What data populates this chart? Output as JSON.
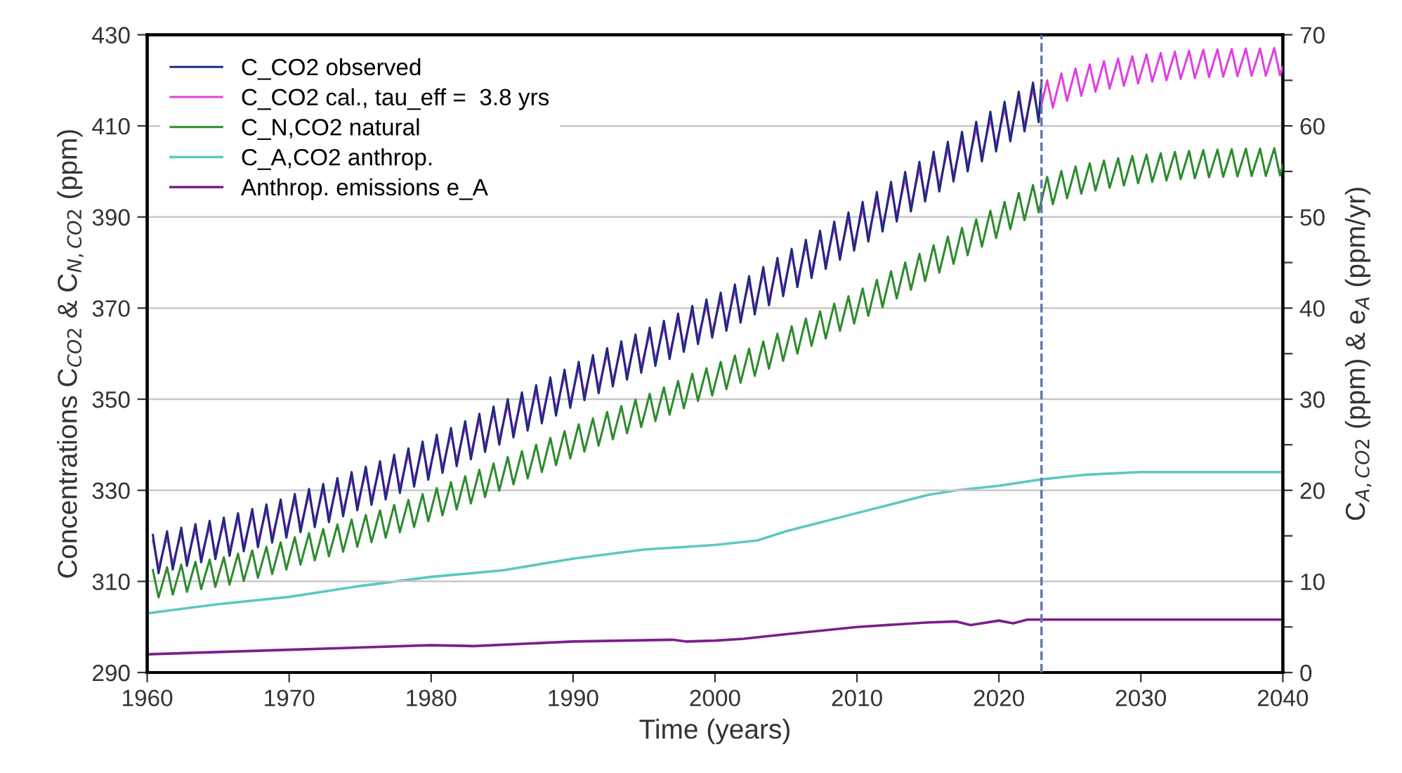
{
  "chart_data": {
    "type": "line",
    "xlabel": "Time (years)",
    "ylabel": "Concentrations C$_{CO2}$ & C$_{N,CO2}$ (ppm)",
    "y2label": "C$_{A,CO2}$ (ppm) & e$_{A}$ (ppm/yr)",
    "xlim": [
      1960,
      2040
    ],
    "xticks": [
      1960,
      1970,
      1980,
      1990,
      2000,
      2010,
      2020,
      2030,
      2040
    ],
    "ylim": [
      290,
      430
    ],
    "yticks": [
      290,
      310,
      330,
      350,
      370,
      390,
      410,
      430
    ],
    "y2lim": [
      0,
      70
    ],
    "y2ticks": [
      0,
      {
        "value": 5,
        "label": null
      },
      10,
      {
        "value": 15,
        "label": null
      },
      20,
      {
        "value": 25,
        "label": null
      },
      30,
      {
        "value": 35,
        "label": null
      },
      40,
      {
        "value": 45,
        "label": null
      },
      50,
      {
        "value": 55,
        "label": null
      },
      60,
      {
        "value": 65,
        "label": null
      },
      70
    ],
    "grid": "y",
    "legend": "top left",
    "line_style": "solid",
    "ref_lines": [
      {
        "axis": "x",
        "value": 2023,
        "label": null,
        "color": "#6070b0",
        "line_style": "dashed"
      }
    ],
    "series": [
      {
        "name": "C_CO2 observed",
        "color": "#1f2a80",
        "x": [
          1960.4,
          1960.8,
          1961.4,
          1961.8,
          1962.4,
          1962.8,
          1963.4,
          1963.8,
          1964.4,
          1964.8,
          1965.4,
          1965.8,
          1966.4,
          1966.8,
          1967.4,
          1967.8,
          1968.4,
          1968.8,
          1969.4,
          1969.8,
          1970.4,
          1970.8,
          1971.4,
          1971.8,
          1972.4,
          1972.8,
          1973.4,
          1973.8,
          1974.4,
          1974.8,
          1975.4,
          1975.8,
          1976.4,
          1976.8,
          1977.4,
          1977.8,
          1978.4,
          1978.8,
          1979.4,
          1979.8,
          1980.4,
          1980.8,
          1981.4,
          1981.8,
          1982.4,
          1982.8,
          1983.4,
          1983.8,
          1984.4,
          1984.8,
          1985.4,
          1985.8,
          1986.4,
          1986.8,
          1987.4,
          1987.8,
          1988.4,
          1988.8,
          1989.4,
          1989.8,
          1990.4,
          1990.8,
          1991.4,
          1991.8,
          1992.4,
          1992.8,
          1993.4,
          1993.8,
          1994.4,
          1994.8,
          1995.4,
          1995.8,
          1996.4,
          1996.8,
          1997.4,
          1997.8,
          1998.4,
          1998.8,
          1999.4,
          1999.8,
          2000.4,
          2000.8,
          2001.4,
          2001.8,
          2002.4,
          2002.8,
          2003.4,
          2003.8,
          2004.4,
          2004.8,
          2005.4,
          2005.8,
          2006.4,
          2006.8,
          2007.4,
          2007.8,
          2008.4,
          2008.8,
          2009.4,
          2009.8,
          2010.4,
          2010.8,
          2011.4,
          2011.8,
          2012.4,
          2012.8,
          2013.4,
          2013.8,
          2014.4,
          2014.8,
          2015.4,
          2015.8,
          2016.4,
          2016.8,
          2017.4,
          2017.8,
          2018.4,
          2018.8,
          2019.4,
          2019.8,
          2020.4,
          2020.8,
          2021.4,
          2021.8,
          2022.4,
          2022.8,
          2023.0
        ],
        "values": [
          320.2,
          311.8,
          321.0,
          312.6,
          321.8,
          313.4,
          322.6,
          314.2,
          323.3,
          314.9,
          324.0,
          315.6,
          325.0,
          316.6,
          325.9,
          317.5,
          326.9,
          318.5,
          328.0,
          319.6,
          329.2,
          320.8,
          330.3,
          321.9,
          331.4,
          323.0,
          332.7,
          324.3,
          334.0,
          325.6,
          335.2,
          326.8,
          336.4,
          328.0,
          337.8,
          329.4,
          339.2,
          330.8,
          340.7,
          332.3,
          342.2,
          333.8,
          343.7,
          335.3,
          345.2,
          336.8,
          346.8,
          338.4,
          348.4,
          340.0,
          350.0,
          341.6,
          351.5,
          343.1,
          353.1,
          344.7,
          354.8,
          346.4,
          356.5,
          348.1,
          358.2,
          349.8,
          359.7,
          351.3,
          361.2,
          352.8,
          362.7,
          354.3,
          364.2,
          355.8,
          365.7,
          357.3,
          367.2,
          358.8,
          368.8,
          360.4,
          370.5,
          362.1,
          371.9,
          363.5,
          373.4,
          365.0,
          375.2,
          366.8,
          377.0,
          368.6,
          379.0,
          370.6,
          381.0,
          372.6,
          383.0,
          374.6,
          385.0,
          376.6,
          387.0,
          378.6,
          389.0,
          380.6,
          391.0,
          382.6,
          393.3,
          384.6,
          395.5,
          386.8,
          397.7,
          389.0,
          399.9,
          391.2,
          402.1,
          393.4,
          404.3,
          395.6,
          406.5,
          397.8,
          408.7,
          400.0,
          410.9,
          402.2,
          413.1,
          404.4,
          415.3,
          406.6,
          417.5,
          408.8,
          419.5,
          410.8,
          420.0
        ]
      },
      {
        "name": "C_CO2 cal., tau_eff =  3.8 yrs",
        "color": "#e040e0",
        "x": [
          1960.4,
          1960.8,
          1961.4,
          1961.8,
          1962.4,
          1962.8,
          1963.4,
          1963.8,
          1964.4,
          1964.8,
          1965.4,
          1965.8,
          1966.4,
          1966.8,
          1967.4,
          1967.8,
          1968.4,
          1968.8,
          1969.4,
          1969.8,
          1970.4,
          1970.8,
          1971.4,
          1971.8,
          1972.4,
          1972.8,
          1973.4,
          1973.8,
          1974.4,
          1974.8,
          1975.4,
          1975.8,
          1976.4,
          1976.8,
          1977.4,
          1977.8,
          1978.4,
          1978.8,
          1979.4,
          1979.8,
          1980.4,
          1980.8,
          1981.4,
          1981.8,
          1982.4,
          1982.8,
          1983.4,
          1983.8,
          1984.4,
          1984.8,
          1985.4,
          1985.8,
          1986.4,
          1986.8,
          1987.4,
          1987.8,
          1988.4,
          1988.8,
          1989.4,
          1989.8,
          1990.4,
          1990.8,
          1991.4,
          1991.8,
          1992.4,
          1992.8,
          1993.4,
          1993.8,
          1994.4,
          1994.8,
          1995.4,
          1995.8,
          1996.4,
          1996.8,
          1997.4,
          1997.8,
          1998.4,
          1998.8,
          1999.4,
          1999.8,
          2000.4,
          2000.8,
          2001.4,
          2001.8,
          2002.4,
          2002.8,
          2003.4,
          2003.8,
          2004.4,
          2004.8,
          2005.4,
          2005.8,
          2006.4,
          2006.8,
          2007.4,
          2007.8,
          2008.4,
          2008.8,
          2009.4,
          2009.8,
          2010.4,
          2010.8,
          2011.4,
          2011.8,
          2012.4,
          2012.8,
          2013.4,
          2013.8,
          2014.4,
          2014.8,
          2015.4,
          2015.8,
          2016.4,
          2016.8,
          2017.4,
          2017.8,
          2018.4,
          2018.8,
          2019.4,
          2019.8,
          2020.4,
          2020.8,
          2021.4,
          2021.8,
          2022.4,
          2022.8,
          2023.4,
          2023.8,
          2024.4,
          2024.8,
          2025.4,
          2025.8,
          2026.4,
          2026.8,
          2027.4,
          2027.8,
          2028.4,
          2028.8,
          2029.4,
          2029.8,
          2030.4,
          2030.8,
          2031.4,
          2031.8,
          2032.4,
          2032.8,
          2033.4,
          2033.8,
          2034.4,
          2034.8,
          2035.4,
          2035.8,
          2036.4,
          2036.8,
          2037.4,
          2037.8,
          2038.4,
          2038.8,
          2039.4,
          2039.8,
          2040.0
        ],
        "values": [
          319.0,
          313.0,
          319.8,
          313.8,
          320.6,
          314.6,
          321.4,
          315.4,
          322.1,
          316.1,
          322.8,
          316.8,
          323.8,
          317.8,
          324.7,
          318.7,
          325.7,
          319.7,
          326.8,
          320.8,
          328.0,
          322.0,
          329.1,
          323.1,
          330.2,
          324.2,
          331.5,
          325.5,
          332.8,
          326.8,
          334.0,
          328.0,
          335.2,
          329.2,
          336.6,
          330.6,
          338.0,
          332.0,
          339.5,
          333.5,
          341.0,
          335.0,
          342.5,
          336.5,
          344.0,
          338.0,
          345.6,
          339.6,
          347.2,
          341.2,
          348.8,
          342.8,
          350.3,
          344.3,
          351.9,
          345.9,
          353.6,
          347.6,
          355.3,
          349.3,
          357.0,
          351.0,
          358.5,
          352.5,
          360.0,
          354.0,
          361.5,
          355.5,
          363.0,
          357.0,
          364.5,
          358.5,
          366.0,
          360.0,
          367.6,
          361.6,
          369.3,
          363.3,
          370.7,
          364.7,
          372.2,
          366.2,
          374.0,
          368.0,
          375.8,
          369.8,
          377.8,
          371.8,
          379.8,
          373.8,
          381.8,
          375.8,
          383.8,
          377.8,
          385.8,
          379.8,
          387.8,
          381.8,
          389.8,
          383.8,
          391.8,
          385.8,
          394.0,
          388.0,
          396.2,
          390.2,
          398.4,
          392.4,
          400.6,
          394.6,
          402.8,
          396.8,
          405.0,
          399.0,
          407.2,
          401.2,
          409.4,
          403.4,
          411.6,
          405.6,
          413.8,
          407.8,
          416.0,
          410.0,
          418.0,
          412.0,
          420.0,
          414.0,
          421.5,
          415.5,
          422.6,
          416.6,
          423.5,
          417.5,
          424.2,
          418.2,
          424.8,
          418.8,
          425.3,
          419.3,
          425.7,
          419.7,
          426.0,
          420.0,
          426.3,
          420.3,
          426.5,
          420.5,
          426.7,
          420.7,
          426.8,
          420.8,
          426.9,
          420.9,
          427.0,
          421.0,
          427.0,
          421.0,
          427.1,
          421.1,
          423.0
        ]
      },
      {
        "name": "C_N,CO2 natural",
        "color": "#2e8b2e",
        "x": [
          1960.4,
          1960.8,
          1961.4,
          1961.8,
          1962.4,
          1962.8,
          1963.4,
          1963.8,
          1964.4,
          1964.8,
          1965.4,
          1965.8,
          1966.4,
          1966.8,
          1967.4,
          1967.8,
          1968.4,
          1968.8,
          1969.4,
          1969.8,
          1970.4,
          1970.8,
          1971.4,
          1971.8,
          1972.4,
          1972.8,
          1973.4,
          1973.8,
          1974.4,
          1974.8,
          1975.4,
          1975.8,
          1976.4,
          1976.8,
          1977.4,
          1977.8,
          1978.4,
          1978.8,
          1979.4,
          1979.8,
          1980.4,
          1980.8,
          1981.4,
          1981.8,
          1982.4,
          1982.8,
          1983.4,
          1983.8,
          1984.4,
          1984.8,
          1985.4,
          1985.8,
          1986.4,
          1986.8,
          1987.4,
          1987.8,
          1988.4,
          1988.8,
          1989.4,
          1989.8,
          1990.4,
          1990.8,
          1991.4,
          1991.8,
          1992.4,
          1992.8,
          1993.4,
          1993.8,
          1994.4,
          1994.8,
          1995.4,
          1995.8,
          1996.4,
          1996.8,
          1997.4,
          1997.8,
          1998.4,
          1998.8,
          1999.4,
          1999.8,
          2000.4,
          2000.8,
          2001.4,
          2001.8,
          2002.4,
          2002.8,
          2003.4,
          2003.8,
          2004.4,
          2004.8,
          2005.4,
          2005.8,
          2006.4,
          2006.8,
          2007.4,
          2007.8,
          2008.4,
          2008.8,
          2009.4,
          2009.8,
          2010.4,
          2010.8,
          2011.4,
          2011.8,
          2012.4,
          2012.8,
          2013.4,
          2013.8,
          2014.4,
          2014.8,
          2015.4,
          2015.8,
          2016.4,
          2016.8,
          2017.4,
          2017.8,
          2018.4,
          2018.8,
          2019.4,
          2019.8,
          2020.4,
          2020.8,
          2021.4,
          2021.8,
          2022.4,
          2022.8,
          2023.4,
          2023.8,
          2024.4,
          2024.8,
          2025.4,
          2025.8,
          2026.4,
          2026.8,
          2027.4,
          2027.8,
          2028.4,
          2028.8,
          2029.4,
          2029.8,
          2030.4,
          2030.8,
          2031.4,
          2031.8,
          2032.4,
          2032.8,
          2033.4,
          2033.8,
          2034.4,
          2034.8,
          2035.4,
          2035.8,
          2036.4,
          2036.8,
          2037.4,
          2037.8,
          2038.4,
          2038.8,
          2039.4,
          2039.8,
          2040.0
        ],
        "values": [
          312.5,
          306.5,
          313.1,
          307.1,
          313.7,
          307.7,
          314.3,
          308.3,
          314.8,
          308.8,
          315.3,
          309.3,
          316.1,
          310.1,
          316.8,
          310.8,
          317.6,
          311.6,
          318.6,
          312.6,
          319.7,
          313.7,
          320.6,
          314.6,
          321.5,
          315.5,
          322.5,
          316.5,
          323.6,
          317.6,
          324.6,
          318.6,
          325.6,
          319.6,
          326.8,
          320.8,
          327.9,
          321.9,
          329.2,
          323.2,
          330.5,
          324.5,
          331.8,
          325.8,
          333.1,
          327.1,
          334.5,
          328.5,
          335.9,
          329.9,
          337.3,
          331.3,
          338.6,
          332.6,
          340.0,
          334.0,
          341.5,
          335.5,
          343.0,
          337.0,
          344.5,
          338.5,
          345.8,
          339.8,
          347.2,
          341.2,
          348.5,
          342.5,
          349.9,
          343.9,
          351.2,
          345.2,
          352.6,
          346.6,
          354.0,
          348.0,
          355.6,
          349.6,
          356.8,
          350.8,
          358.2,
          352.2,
          359.6,
          353.6,
          361.1,
          355.1,
          362.7,
          356.7,
          364.4,
          358.4,
          366.0,
          360.0,
          367.7,
          361.7,
          369.3,
          363.3,
          371.0,
          365.0,
          372.6,
          366.6,
          374.3,
          368.3,
          376.2,
          370.2,
          378.1,
          372.1,
          380.0,
          374.0,
          381.9,
          375.9,
          383.8,
          377.8,
          385.7,
          379.7,
          387.6,
          381.6,
          389.5,
          383.5,
          391.4,
          385.4,
          393.3,
          387.3,
          395.3,
          389.3,
          397.0,
          391.0,
          398.8,
          392.8,
          400.1,
          394.1,
          401.1,
          395.1,
          401.8,
          395.8,
          402.4,
          396.4,
          402.9,
          396.9,
          403.4,
          397.4,
          403.7,
          397.7,
          404.0,
          398.0,
          404.3,
          398.3,
          404.5,
          398.5,
          404.7,
          398.7,
          404.8,
          398.8,
          404.9,
          398.9,
          405.0,
          399.0,
          405.0,
          399.0,
          405.1,
          399.1,
          401.5
        ]
      },
      {
        "name": "C_A,CO2 anthrop.",
        "color": "#5cc8c0",
        "axis": "y2",
        "x": [
          1960,
          1965,
          1970,
          1975,
          1980,
          1985,
          1990,
          1995,
          2000,
          2003,
          2005,
          2010,
          2015,
          2017,
          2020,
          2023,
          2026,
          2030,
          2040
        ],
        "values": [
          6.5,
          7.5,
          8.3,
          9.5,
          10.5,
          11.2,
          12.5,
          13.5,
          14.0,
          14.5,
          15.5,
          17.5,
          19.5,
          20.0,
          20.5,
          21.2,
          21.7,
          22.0,
          22.0
        ]
      },
      {
        "name": "Anthrop. emissions e_A",
        "color": "#7b1f8a",
        "axis": "y2",
        "x": [
          1960,
          1970,
          1980,
          1983,
          1990,
          1997,
          1998,
          2000,
          2002,
          2005,
          2010,
          2015,
          2017,
          2018,
          2020,
          2021,
          2022,
          2040
        ],
        "values": [
          2.0,
          2.5,
          3.0,
          2.9,
          3.4,
          3.6,
          3.4,
          3.5,
          3.7,
          4.2,
          5.0,
          5.5,
          5.6,
          5.2,
          5.7,
          5.4,
          5.8,
          5.8
        ]
      }
    ]
  }
}
